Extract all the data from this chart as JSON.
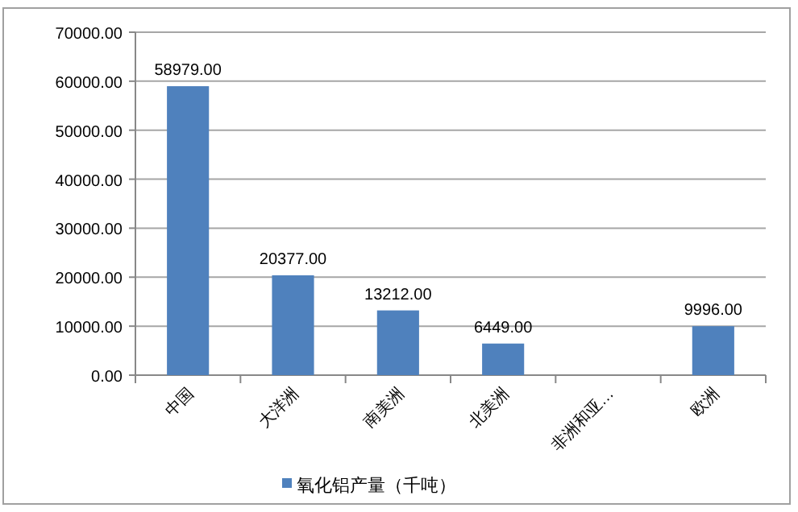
{
  "chart_data": {
    "type": "bar",
    "categories": [
      "中国",
      "大洋洲",
      "南美洲",
      "北美洲",
      "非洲和亚…",
      "欧洲"
    ],
    "series": [
      {
        "name": "氧化铝产量（千吨）",
        "color": "#4f81bd",
        "values": [
          58979,
          20377,
          13212,
          6449,
          null,
          9996
        ],
        "value_labels": [
          "58979.00",
          "20377.00",
          "13212.00",
          "6449.00",
          null,
          "9996.00"
        ]
      }
    ],
    "ylim": [
      0,
      70000
    ],
    "yticks": [
      {
        "value": 0,
        "label": "0.00"
      },
      {
        "value": 10000,
        "label": "10000.00"
      },
      {
        "value": 20000,
        "label": "20000.00"
      },
      {
        "value": 30000,
        "label": "30000.00"
      },
      {
        "value": 40000,
        "label": "40000.00"
      },
      {
        "value": 50000,
        "label": "50000.00"
      },
      {
        "value": 60000,
        "label": "60000.00"
      },
      {
        "value": 70000,
        "label": "70000.00"
      }
    ],
    "grid": "y",
    "legend": "bottom"
  }
}
